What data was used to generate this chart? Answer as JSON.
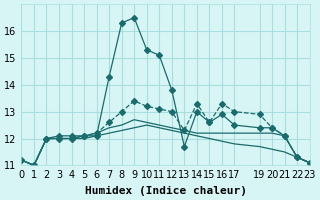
{
  "xlabel": "Humidex (Indice chaleur)",
  "ylabel": "",
  "bg_color": "#d7f5f5",
  "grid_color": "#aadddd",
  "line_color": "#1a6b6b",
  "xlim": [
    0,
    23
  ],
  "ylim": [
    11,
    17
  ],
  "yticks": [
    11,
    12,
    13,
    14,
    15,
    16
  ],
  "xticks": [
    0,
    1,
    2,
    3,
    4,
    5,
    6,
    7,
    8,
    9,
    10,
    11,
    12,
    13,
    14,
    15,
    16,
    17,
    19,
    20,
    21,
    22,
    23
  ],
  "xtick_labels": [
    "0",
    "1",
    "2",
    "3",
    "4",
    "5",
    "6",
    "7",
    "8",
    "9",
    "10",
    "11",
    "12",
    "13",
    "14",
    "15",
    "16",
    "17",
    "19",
    "20",
    "21",
    "22",
    "23"
  ],
  "series": [
    {
      "x": [
        0,
        1,
        2,
        3,
        4,
        5,
        6,
        7,
        8,
        9,
        10,
        11,
        12,
        13,
        14,
        15,
        16,
        17,
        19,
        20,
        21,
        22,
        23
      ],
      "y": [
        11.2,
        11.0,
        12.0,
        12.1,
        12.1,
        12.1,
        12.1,
        14.3,
        16.3,
        16.5,
        15.3,
        15.1,
        13.8,
        11.7,
        13.0,
        12.6,
        12.9,
        12.5,
        12.4,
        12.4,
        12.1,
        11.3,
        11.1
      ],
      "style": "-",
      "marker": "D",
      "markersize": 3
    },
    {
      "x": [
        0,
        1,
        2,
        3,
        4,
        5,
        6,
        7,
        8,
        9,
        10,
        11,
        12,
        13,
        14,
        15,
        16,
        17,
        19,
        20,
        21,
        22,
        23
      ],
      "y": [
        11.2,
        11.0,
        12.0,
        12.0,
        12.0,
        12.0,
        12.1,
        12.2,
        12.3,
        12.4,
        12.5,
        12.4,
        12.3,
        12.2,
        12.1,
        12.0,
        11.9,
        11.8,
        11.7,
        11.6,
        11.5,
        11.3,
        11.1
      ],
      "style": "-",
      "marker": null,
      "markersize": 0
    },
    {
      "x": [
        0,
        1,
        2,
        3,
        4,
        5,
        6,
        7,
        8,
        9,
        10,
        11,
        12,
        13,
        14,
        15,
        16,
        17,
        19,
        20,
        21,
        22,
        23
      ],
      "y": [
        11.2,
        11.0,
        12.0,
        12.0,
        12.0,
        12.1,
        12.2,
        12.4,
        12.5,
        12.7,
        12.6,
        12.5,
        12.4,
        12.3,
        12.2,
        12.2,
        12.2,
        12.2,
        12.2,
        12.2,
        12.1,
        11.3,
        11.1
      ],
      "style": "-",
      "marker": null,
      "markersize": 0
    },
    {
      "x": [
        0,
        1,
        2,
        3,
        4,
        5,
        6,
        7,
        8,
        9,
        10,
        11,
        12,
        13,
        14,
        15,
        16,
        17,
        19,
        20,
        21,
        22,
        23
      ],
      "y": [
        11.2,
        11.0,
        12.0,
        12.0,
        12.0,
        12.1,
        12.2,
        12.6,
        13.0,
        13.4,
        13.2,
        13.1,
        13.0,
        12.3,
        13.3,
        12.6,
        13.3,
        13.0,
        12.9,
        12.4,
        12.1,
        11.3,
        11.1
      ],
      "style": "--",
      "marker": "D",
      "markersize": 3
    }
  ],
  "tick_fontsize": 7,
  "xlabel_fontsize": 8
}
